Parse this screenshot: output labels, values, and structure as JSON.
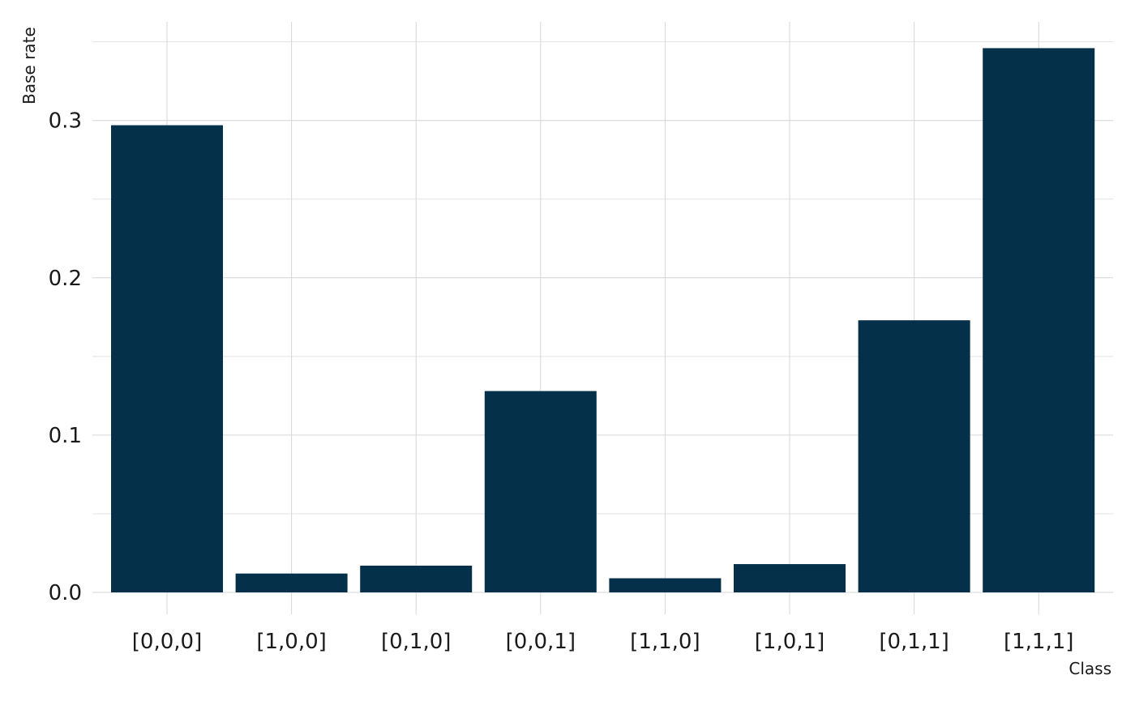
{
  "chart_data": {
    "type": "bar",
    "title": "",
    "xlabel": "Class",
    "ylabel": "Base rate",
    "categories": [
      "[0,0,0]",
      "[1,0,0]",
      "[0,1,0]",
      "[0,0,1]",
      "[1,1,0]",
      "[1,0,1]",
      "[0,1,1]",
      "[1,1,1]"
    ],
    "values": [
      0.297,
      0.012,
      0.017,
      0.128,
      0.009,
      0.018,
      0.173,
      0.346
    ],
    "ylim": [
      0,
      0.35
    ],
    "yticks": [
      0.0,
      0.1,
      0.2,
      0.3
    ],
    "ytick_labels": [
      "0.0",
      "0.1",
      "0.2",
      "0.3"
    ],
    "bar_color": "#04304a",
    "grid": true,
    "legend": "none"
  }
}
